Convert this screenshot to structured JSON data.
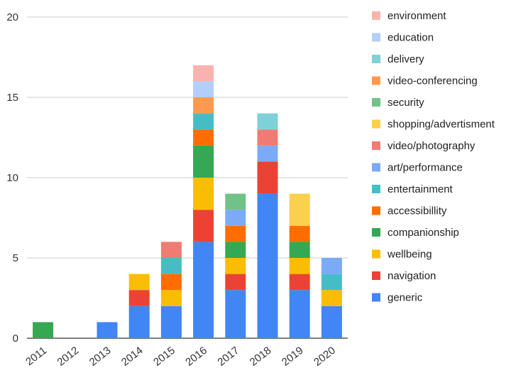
{
  "chart_data": {
    "type": "bar",
    "stacked": true,
    "categories": [
      "2011",
      "2012",
      "2013",
      "2014",
      "2015",
      "2016",
      "2017",
      "2018",
      "2019",
      "2020"
    ],
    "ylim": [
      0,
      20
    ],
    "yticks": [
      "0",
      "5",
      "10",
      "15",
      "20"
    ],
    "grid": true,
    "legend_position": "right",
    "series": [
      {
        "name": "generic",
        "color": "#4285F4",
        "values": [
          0,
          0,
          1,
          2,
          2,
          6,
          3,
          9,
          3,
          2
        ]
      },
      {
        "name": "navigation",
        "color": "#EA4335",
        "values": [
          0,
          0,
          0,
          1,
          0,
          2,
          1,
          2,
          1,
          0
        ]
      },
      {
        "name": "wellbeing",
        "color": "#FBBC04",
        "values": [
          0,
          0,
          0,
          1,
          1,
          2,
          1,
          0,
          1,
          1
        ]
      },
      {
        "name": "companionship",
        "color": "#34A853",
        "values": [
          1,
          0,
          0,
          0,
          0,
          2,
          1,
          0,
          1,
          0
        ]
      },
      {
        "name": "accessibillity",
        "color": "#FF6D01",
        "values": [
          0,
          0,
          0,
          0,
          1,
          1,
          1,
          0,
          1,
          0
        ]
      },
      {
        "name": "entertainment",
        "color": "#46BDC6",
        "values": [
          0,
          0,
          0,
          0,
          1,
          1,
          0,
          0,
          0,
          1
        ]
      },
      {
        "name": "art/performance",
        "color": "#7BAAF7",
        "values": [
          0,
          0,
          0,
          0,
          0,
          0,
          1,
          1,
          0,
          1
        ]
      },
      {
        "name": "video/photography",
        "color": "#F07B72",
        "values": [
          0,
          0,
          0,
          0,
          1,
          0,
          0,
          1,
          0,
          0
        ]
      },
      {
        "name": "shopping/advertisment",
        "color": "#FCD04F",
        "values": [
          0,
          0,
          0,
          0,
          0,
          0,
          0,
          0,
          2,
          0
        ]
      },
      {
        "name": "security",
        "color": "#71C287",
        "values": [
          0,
          0,
          0,
          0,
          0,
          0,
          1,
          0,
          0,
          0
        ]
      },
      {
        "name": "video-conferencing",
        "color": "#FF994D",
        "values": [
          0,
          0,
          0,
          0,
          0,
          1,
          0,
          0,
          0,
          0
        ]
      },
      {
        "name": "delivery",
        "color": "#7ED1D7",
        "values": [
          0,
          0,
          0,
          0,
          0,
          0,
          0,
          1,
          0,
          0
        ]
      },
      {
        "name": "education",
        "color": "#B3CEFB",
        "values": [
          0,
          0,
          0,
          0,
          0,
          1,
          0,
          0,
          0,
          0
        ]
      },
      {
        "name": "environment",
        "color": "#F7B4AE",
        "values": [
          0,
          0,
          0,
          0,
          0,
          1,
          0,
          0,
          0,
          0
        ]
      }
    ]
  }
}
